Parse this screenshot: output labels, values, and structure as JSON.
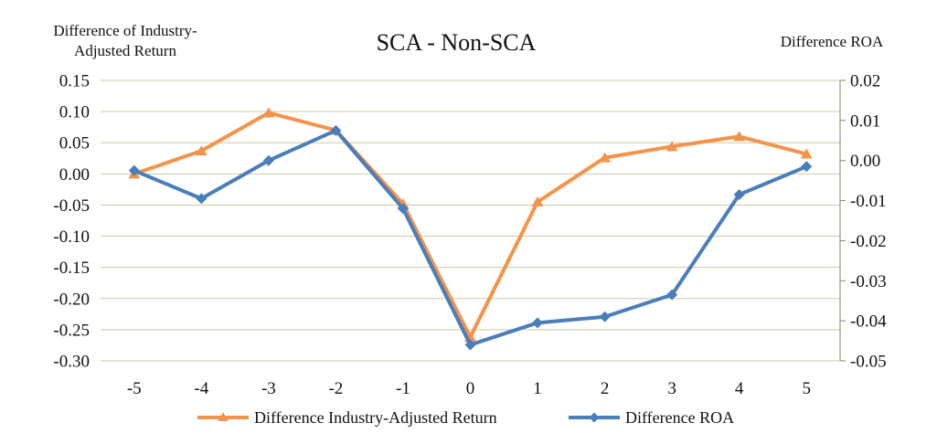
{
  "chart_data": {
    "type": "line",
    "title": "SCA - Non-SCA",
    "y1label_lines": [
      "Difference of Industry-",
      "Adjusted Return"
    ],
    "y2label": "Difference ROA",
    "categories": [
      "-5",
      "-4",
      "-3",
      "-2",
      "-1",
      "0",
      "1",
      "2",
      "3",
      "4",
      "5"
    ],
    "y1lim": [
      -0.3,
      0.15
    ],
    "y1ticks": [
      "0.15",
      "0.10",
      "0.05",
      "0.00",
      "-0.05",
      "-0.10",
      "-0.15",
      "-0.20",
      "-0.25",
      "-0.30"
    ],
    "y2lim": [
      -0.05,
      0.02
    ],
    "y2ticks": [
      "0.02",
      "0.01",
      "0.00",
      "-0.01",
      "-0.02",
      "-0.03",
      "-0.04",
      "-0.05"
    ],
    "grid": true,
    "legend_position": "bottom",
    "series": [
      {
        "name": "Difference Industry-Adjusted Return",
        "axis": "left",
        "color": "#f4934a",
        "marker": "triangle",
        "values": [
          0.0,
          0.037,
          0.098,
          0.07,
          -0.048,
          -0.262,
          -0.045,
          0.026,
          0.044,
          0.06,
          0.032
        ]
      },
      {
        "name": "Difference ROA",
        "axis": "right",
        "color": "#4a7ebb",
        "marker": "diamond",
        "values": [
          -0.0025,
          -0.0095,
          0.0,
          0.0075,
          -0.012,
          -0.046,
          -0.0405,
          -0.039,
          -0.0335,
          -0.0085,
          -0.0015
        ]
      }
    ]
  }
}
